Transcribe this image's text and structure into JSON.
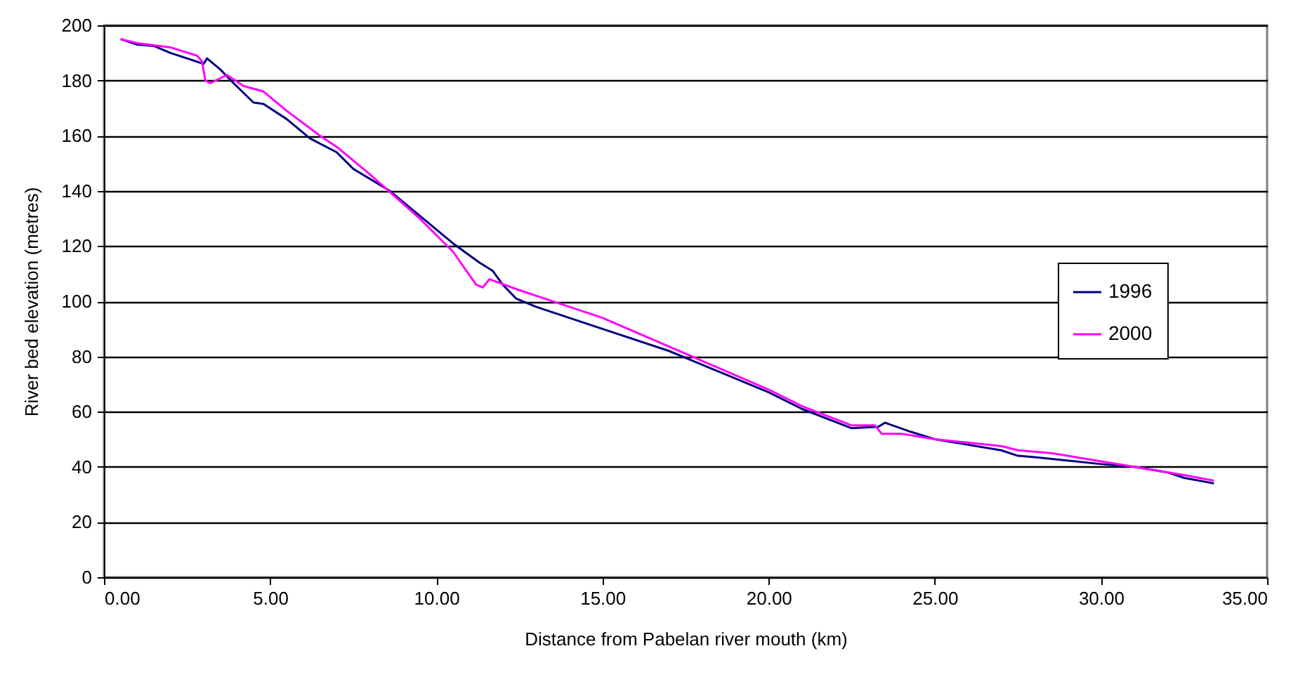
{
  "chart_data": {
    "type": "line",
    "xlabel": "Distance from Pabelan river mouth (km)",
    "ylabel": "River bed  elevation   (metres)",
    "xlim": [
      0,
      35
    ],
    "ylim": [
      0,
      200
    ],
    "xticks": [
      {
        "value": 0,
        "label": "0.00"
      },
      {
        "value": 5,
        "label": "5.00"
      },
      {
        "value": 10,
        "label": "10.00"
      },
      {
        "value": 15,
        "label": "15.00"
      },
      {
        "value": 20,
        "label": "20.00"
      },
      {
        "value": 25,
        "label": "25.00"
      },
      {
        "value": 30,
        "label": "30.00"
      },
      {
        "value": 35,
        "label": "35.00"
      }
    ],
    "yticks": [
      0,
      20,
      40,
      60,
      80,
      100,
      120,
      140,
      160,
      180,
      200
    ],
    "grid": "y",
    "legend": "right",
    "line_style": "solid",
    "marker": "none",
    "series": [
      {
        "name": "1996",
        "color": "#000080",
        "x": [
          0.5,
          1.0,
          1.5,
          2.0,
          2.5,
          3.0,
          3.1,
          3.5,
          3.9,
          4.5,
          4.8,
          5.5,
          6.2,
          7.0,
          7.5,
          8.6,
          9.5,
          10.5,
          11.3,
          11.7,
          12.0,
          12.4,
          13.0,
          15.0,
          17.0,
          18.0,
          20.0,
          21.0,
          22.5,
          23.3,
          23.5,
          24.2,
          25.0,
          26.0,
          27.0,
          27.5,
          28.0,
          30.0,
          31.0,
          32.0,
          32.5,
          33.4
        ],
        "values": [
          195,
          193,
          192.5,
          190,
          188,
          186,
          188,
          184,
          179,
          172,
          171.5,
          166,
          159,
          154,
          148,
          140,
          131,
          121,
          114,
          111,
          106,
          101,
          98,
          90,
          82,
          77,
          67,
          61,
          54,
          54.5,
          56,
          53,
          50,
          48,
          46,
          44,
          43.5,
          41,
          40,
          38,
          36,
          34
        ]
      },
      {
        "name": "2000",
        "color": "#ff00ff",
        "x": [
          0.5,
          1.0,
          2.0,
          2.8,
          2.95,
          3.05,
          3.2,
          3.7,
          4.2,
          4.8,
          5.5,
          6.5,
          7.0,
          8.0,
          9.5,
          10.5,
          11.2,
          11.4,
          11.6,
          12.5,
          15.0,
          17.5,
          20.0,
          21.0,
          22.5,
          23.2,
          23.4,
          24.0,
          25.0,
          27.0,
          27.5,
          28.5,
          30.0,
          31.0,
          32.5,
          33.4
        ],
        "values": [
          195,
          193.5,
          192,
          189,
          187,
          180,
          179,
          182,
          178,
          176,
          169,
          160,
          156,
          146,
          130,
          118,
          106,
          105,
          108,
          104,
          94,
          81,
          68,
          62,
          55,
          55,
          52,
          52,
          50,
          47.5,
          46,
          45,
          42,
          40,
          37,
          35
        ]
      }
    ]
  }
}
